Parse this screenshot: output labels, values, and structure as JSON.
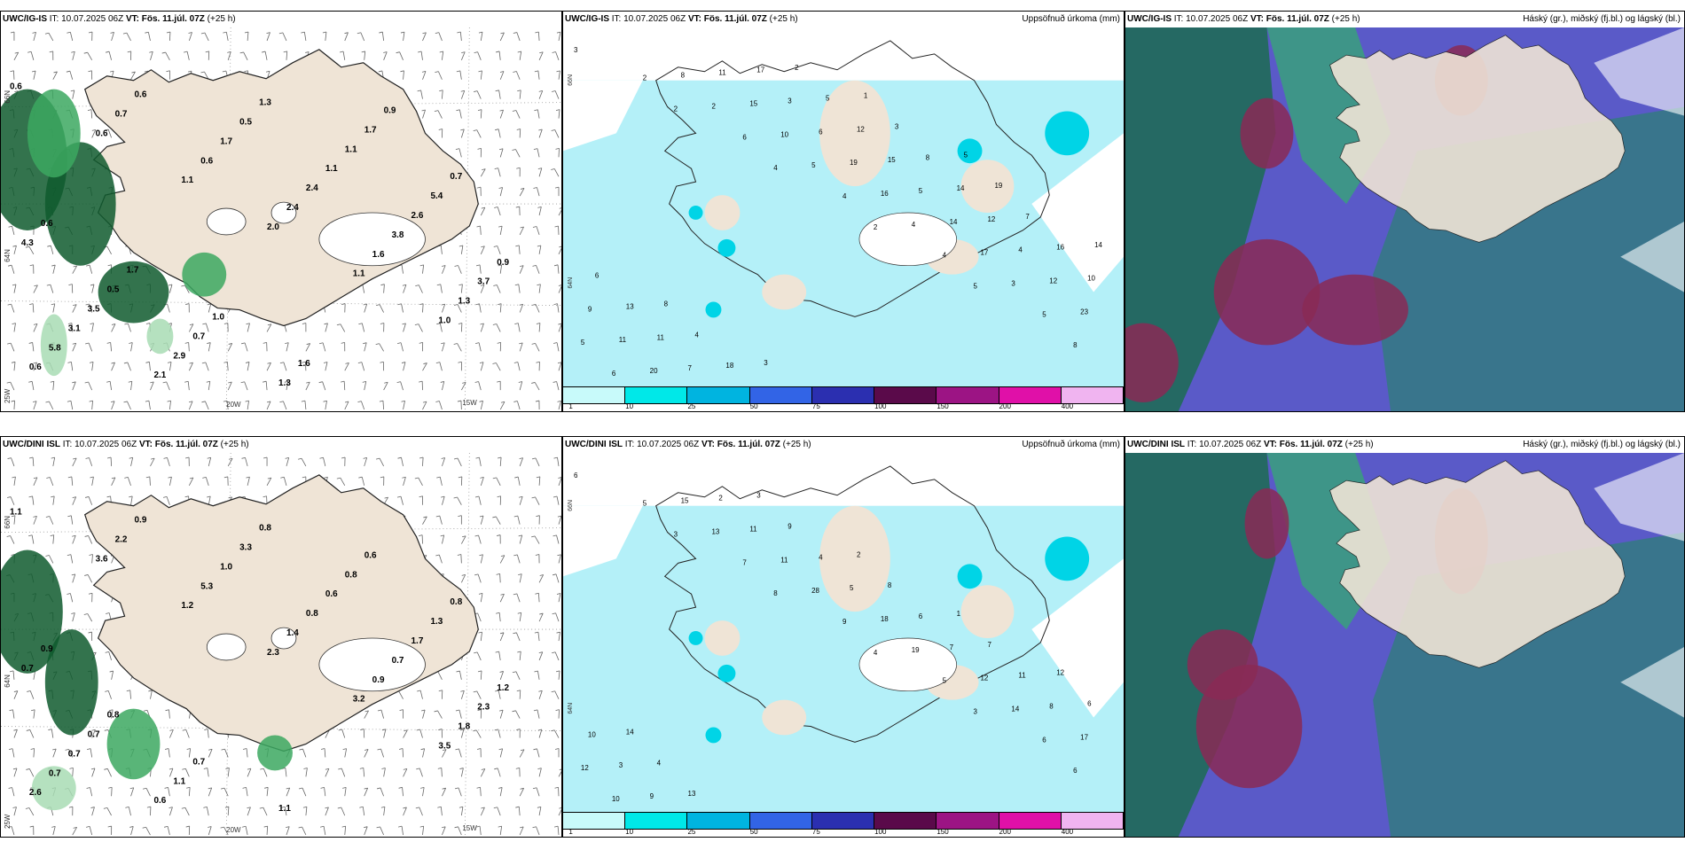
{
  "rows": [
    {
      "model": "UWC/IG-IS",
      "it_label": "IT:",
      "it": "10.07.2025 06Z",
      "vt_label": "VT:",
      "vt": "Fös. 11.júl. 07Z",
      "lead": "(+25 h)",
      "panel_a_labels": [
        "0.6",
        "0.6",
        "1.1",
        "2.0",
        "1.1",
        "1.0",
        "0.6",
        "0.7",
        "0.6",
        "2.4",
        "1.6",
        "1.3",
        "5.8",
        "0.6",
        "1.7",
        "2.4",
        "3.8",
        "3.7",
        "3.1",
        "2.1",
        "0.5",
        "1.1",
        "2.6",
        "0.9",
        "3.5",
        "2.9",
        "1.3",
        "1.1",
        "5.4",
        "4.3",
        "0.5",
        "0.7",
        "1.3",
        "1.7",
        "0.7",
        "0.6",
        "1.7",
        "1.0",
        "1.6",
        "0.9"
      ],
      "panel_b_labels": [
        "3",
        "2",
        "4",
        "2",
        "5",
        "8",
        "2",
        "6",
        "4",
        "4",
        "5",
        "6",
        "2",
        "5",
        "4",
        "3",
        "5",
        "8",
        "10",
        "16",
        "17",
        "23",
        "20",
        "15",
        "19",
        "14",
        "12",
        "11",
        "11",
        "6",
        "5",
        "4",
        "9",
        "7",
        "3",
        "15",
        "12",
        "10",
        "11",
        "17",
        "12",
        "14",
        "16",
        "13",
        "18",
        "5",
        "8",
        "7",
        "6",
        "4",
        "2",
        "3",
        "19",
        "14",
        "8",
        "3",
        "1",
        "5"
      ],
      "panel_c_right": "Háský (gr.), miðský (fj.bl.) og lágský (bl.)"
    },
    {
      "model": "UWC/DINI ISL",
      "it_label": "IT:",
      "it": "10.07.2025 06Z",
      "vt_label": "VT:",
      "vt": "Fös. 11.júl. 07Z",
      "lead": "(+25 h)",
      "panel_a_labels": [
        "1.1",
        "3.6",
        "1.2",
        "2.3",
        "3.2",
        "3.5",
        "2.6",
        "2.2",
        "5.3",
        "1.4",
        "0.9",
        "1.8",
        "0.7",
        "0.9",
        "1.0",
        "0.8",
        "0.7",
        "2.3",
        "0.7",
        "0.6",
        "3.3",
        "0.6",
        "1.7",
        "1.2",
        "0.7",
        "1.1",
        "0.8",
        "0.8",
        "1.3",
        "0.7",
        "0.8",
        "0.7",
        "1.1",
        "0.6",
        "0.8",
        "0.9"
      ],
      "panel_b_labels": [
        "6",
        "3",
        "8",
        "4",
        "3",
        "6",
        "5",
        "7",
        "9",
        "5",
        "6",
        "10",
        "13",
        "28",
        "19",
        "14",
        "12",
        "15",
        "11",
        "18",
        "12",
        "17",
        "9",
        "11",
        "5",
        "7",
        "8",
        "3",
        "2",
        "4",
        "6",
        "11",
        "10",
        "13",
        "9",
        "8",
        "7",
        "6",
        "4",
        "3",
        "2",
        "1",
        "12",
        "14"
      ],
      "panel_c_right": "Háský (gr.), miðský (fj.bl.) og lágský (bl.)"
    }
  ],
  "precip_title": "Uppsöfnuð úrkoma (mm)",
  "colorbar": {
    "ticks": [
      "1",
      "10",
      "25",
      "50",
      "75",
      "100",
      "150",
      "200",
      "400"
    ],
    "colors": [
      "#c8fafa",
      "#00e8e8",
      "#00b4e0",
      "#3264e6",
      "#2b2fb0",
      "#5a0a4a",
      "#9c1484",
      "#e010a8",
      "#f0b4f0"
    ]
  },
  "axes": {
    "lat_top": "66N",
    "lat_mid": "64N",
    "lat_bottom": "25W",
    "lon_a": "20W",
    "lon_b": "15W",
    "lat_b_top": "66N",
    "lat_b_mid": "64N"
  },
  "colors": {
    "land": "#efe4d6",
    "precip_light": "#b4f0f8",
    "green_dark": "#0f5a2e",
    "green_mid": "#3ca860",
    "green_light": "#a8dcb4",
    "cloud_high": "#1f6a58",
    "cloud_mid": "#8a2a55",
    "cloud_low": "#5a5ac8"
  }
}
